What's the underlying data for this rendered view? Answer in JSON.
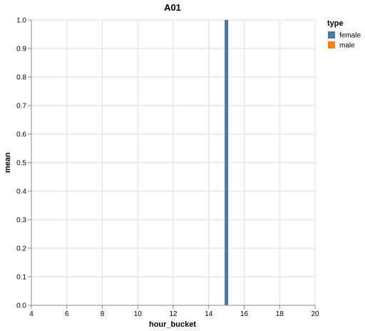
{
  "chart_data": {
    "type": "bar",
    "title": "A01",
    "xlabel": "hour_bucket",
    "ylabel": "mean",
    "xlim": [
      4,
      20
    ],
    "ylim": [
      0,
      1
    ],
    "xticks": [
      4,
      6,
      8,
      10,
      12,
      14,
      16,
      18,
      20
    ],
    "yticks": [
      "0.0",
      "0.1",
      "0.2",
      "0.3",
      "0.4",
      "0.5",
      "0.6",
      "0.7",
      "0.8",
      "0.9",
      "1.0"
    ],
    "grid": true,
    "legend": {
      "title": "type",
      "placement": "right",
      "entries": [
        {
          "name": "female",
          "color": "#4c78a8"
        },
        {
          "name": "male",
          "color": "#f58518"
        }
      ]
    },
    "series": [
      {
        "name": "female",
        "color": "#4c78a8",
        "points": [
          {
            "x": 15,
            "y": 1.0
          }
        ]
      },
      {
        "name": "male",
        "color": "#f58518",
        "points": []
      }
    ]
  }
}
